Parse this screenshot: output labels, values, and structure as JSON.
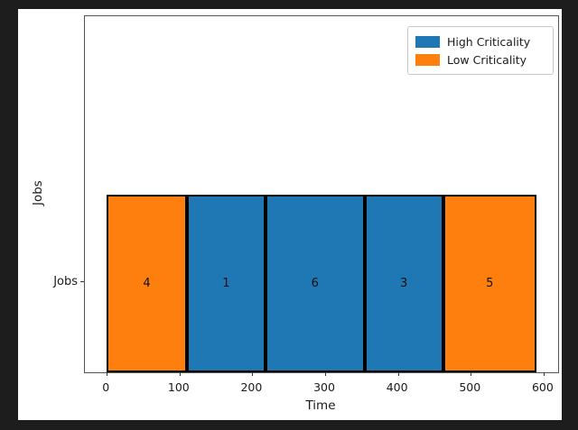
{
  "window": {
    "background_color": "#1d1d1d",
    "figure_background_color": "#ffffff"
  },
  "chart_data": {
    "type": "bar",
    "variant": "horizontal-stacked-schedule",
    "title": "",
    "xlabel": "Time",
    "ylabel": "Jobs",
    "y_tick_label": "Jobs",
    "xlim": [
      -30,
      620
    ],
    "x_ticks": [
      0,
      100,
      200,
      300,
      400,
      500,
      600
    ],
    "grid": false,
    "legend_position": "upper-right",
    "legend": [
      {
        "label": "High Criticality",
        "color": "#1f77b4"
      },
      {
        "label": "Low Criticality",
        "color": "#ff7f0e"
      }
    ],
    "bar_edge_color": "#000000",
    "segments": [
      {
        "job": "4",
        "start": 0,
        "end": 110,
        "criticality": "Low",
        "color": "#ff7f0e"
      },
      {
        "job": "1",
        "start": 110,
        "end": 218,
        "criticality": "High",
        "color": "#1f77b4"
      },
      {
        "job": "6",
        "start": 218,
        "end": 354,
        "criticality": "High",
        "color": "#1f77b4"
      },
      {
        "job": "3",
        "start": 354,
        "end": 462,
        "criticality": "High",
        "color": "#1f77b4"
      },
      {
        "job": "5",
        "start": 462,
        "end": 590,
        "criticality": "Low",
        "color": "#ff7f0e"
      }
    ]
  }
}
